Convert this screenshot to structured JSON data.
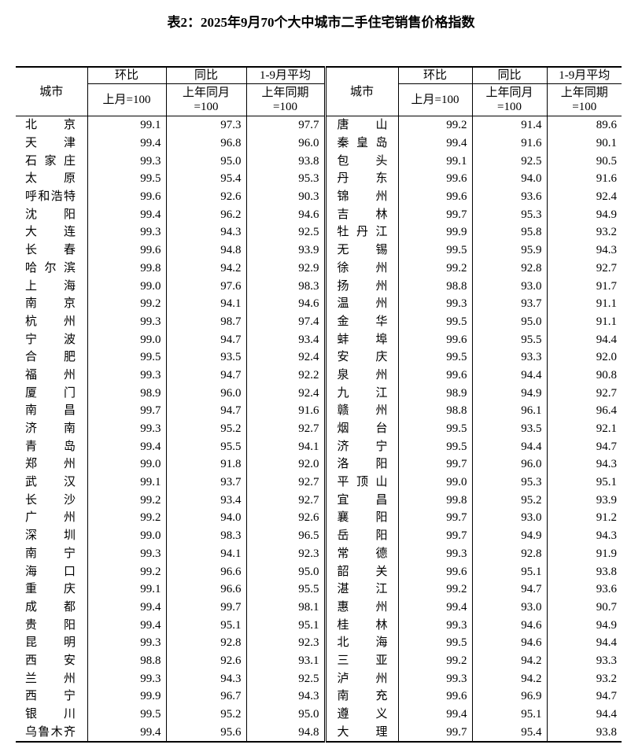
{
  "title": "表2：2025年9月70个大中城市二手住宅销售价格指数",
  "header": {
    "city": "城市",
    "mom": "环比",
    "yoy": "同比",
    "avg": "1-9月平均",
    "mom_base": "上月=100",
    "yoy_base_line1": "上年同月",
    "yoy_base_line2": "=100",
    "avg_base_line1": "上年同期",
    "avg_base_line2": "=100"
  },
  "left_rows": [
    {
      "city": "北京",
      "mom": "99.1",
      "yoy": "97.3",
      "avg": "97.7"
    },
    {
      "city": "天津",
      "mom": "99.4",
      "yoy": "96.8",
      "avg": "96.0"
    },
    {
      "city": "石家庄",
      "mom": "99.3",
      "yoy": "95.0",
      "avg": "93.8"
    },
    {
      "city": "太原",
      "mom": "99.5",
      "yoy": "95.4",
      "avg": "95.3"
    },
    {
      "city": "呼和浩特",
      "mom": "99.6",
      "yoy": "92.6",
      "avg": "90.3"
    },
    {
      "city": "沈阳",
      "mom": "99.4",
      "yoy": "96.2",
      "avg": "94.6"
    },
    {
      "city": "大连",
      "mom": "99.3",
      "yoy": "94.3",
      "avg": "92.5"
    },
    {
      "city": "长春",
      "mom": "99.6",
      "yoy": "94.8",
      "avg": "93.9"
    },
    {
      "city": "哈尔滨",
      "mom": "99.8",
      "yoy": "94.2",
      "avg": "92.9"
    },
    {
      "city": "上海",
      "mom": "99.0",
      "yoy": "97.6",
      "avg": "98.3"
    },
    {
      "city": "南京",
      "mom": "99.2",
      "yoy": "94.1",
      "avg": "94.6"
    },
    {
      "city": "杭州",
      "mom": "99.3",
      "yoy": "98.7",
      "avg": "97.4"
    },
    {
      "city": "宁波",
      "mom": "99.0",
      "yoy": "94.7",
      "avg": "93.4"
    },
    {
      "city": "合肥",
      "mom": "99.5",
      "yoy": "93.5",
      "avg": "92.4"
    },
    {
      "city": "福州",
      "mom": "99.3",
      "yoy": "94.7",
      "avg": "92.2"
    },
    {
      "city": "厦门",
      "mom": "98.9",
      "yoy": "96.0",
      "avg": "92.4"
    },
    {
      "city": "南昌",
      "mom": "99.7",
      "yoy": "94.7",
      "avg": "91.6"
    },
    {
      "city": "济南",
      "mom": "99.3",
      "yoy": "95.2",
      "avg": "92.7"
    },
    {
      "city": "青岛",
      "mom": "99.4",
      "yoy": "95.5",
      "avg": "94.1"
    },
    {
      "city": "郑州",
      "mom": "99.0",
      "yoy": "91.8",
      "avg": "92.0"
    },
    {
      "city": "武汉",
      "mom": "99.1",
      "yoy": "93.7",
      "avg": "92.7"
    },
    {
      "city": "长沙",
      "mom": "99.2",
      "yoy": "93.4",
      "avg": "92.7"
    },
    {
      "city": "广州",
      "mom": "99.2",
      "yoy": "94.0",
      "avg": "92.6"
    },
    {
      "city": "深圳",
      "mom": "99.0",
      "yoy": "98.3",
      "avg": "96.5"
    },
    {
      "city": "南宁",
      "mom": "99.3",
      "yoy": "94.1",
      "avg": "92.3"
    },
    {
      "city": "海口",
      "mom": "99.2",
      "yoy": "96.6",
      "avg": "95.0"
    },
    {
      "city": "重庆",
      "mom": "99.1",
      "yoy": "96.6",
      "avg": "95.5"
    },
    {
      "city": "成都",
      "mom": "99.4",
      "yoy": "99.7",
      "avg": "98.1"
    },
    {
      "city": "贵阳",
      "mom": "99.4",
      "yoy": "95.1",
      "avg": "95.1"
    },
    {
      "city": "昆明",
      "mom": "99.3",
      "yoy": "92.8",
      "avg": "92.3"
    },
    {
      "city": "西安",
      "mom": "98.8",
      "yoy": "92.6",
      "avg": "93.1"
    },
    {
      "city": "兰州",
      "mom": "99.3",
      "yoy": "94.3",
      "avg": "92.5"
    },
    {
      "city": "西宁",
      "mom": "99.9",
      "yoy": "96.7",
      "avg": "94.3"
    },
    {
      "city": "银川",
      "mom": "99.5",
      "yoy": "95.2",
      "avg": "95.0"
    },
    {
      "city": "乌鲁木齐",
      "mom": "99.4",
      "yoy": "95.6",
      "avg": "94.8"
    }
  ],
  "right_rows": [
    {
      "city": "唐山",
      "mom": "99.2",
      "yoy": "91.4",
      "avg": "89.6"
    },
    {
      "city": "秦皇岛",
      "mom": "99.4",
      "yoy": "91.6",
      "avg": "90.1"
    },
    {
      "city": "包头",
      "mom": "99.1",
      "yoy": "92.5",
      "avg": "90.5"
    },
    {
      "city": "丹东",
      "mom": "99.6",
      "yoy": "94.0",
      "avg": "91.6"
    },
    {
      "city": "锦州",
      "mom": "99.6",
      "yoy": "93.6",
      "avg": "92.4"
    },
    {
      "city": "吉林",
      "mom": "99.7",
      "yoy": "95.3",
      "avg": "94.9"
    },
    {
      "city": "牡丹江",
      "mom": "99.9",
      "yoy": "95.8",
      "avg": "93.2"
    },
    {
      "city": "无锡",
      "mom": "99.5",
      "yoy": "95.9",
      "avg": "94.3"
    },
    {
      "city": "徐州",
      "mom": "99.2",
      "yoy": "92.8",
      "avg": "92.7"
    },
    {
      "city": "扬州",
      "mom": "98.8",
      "yoy": "93.0",
      "avg": "91.7"
    },
    {
      "city": "温州",
      "mom": "99.3",
      "yoy": "93.7",
      "avg": "91.1"
    },
    {
      "city": "金华",
      "mom": "99.5",
      "yoy": "95.0",
      "avg": "91.1"
    },
    {
      "city": "蚌埠",
      "mom": "99.6",
      "yoy": "95.5",
      "avg": "94.4"
    },
    {
      "city": "安庆",
      "mom": "99.5",
      "yoy": "93.3",
      "avg": "92.0"
    },
    {
      "city": "泉州",
      "mom": "99.6",
      "yoy": "94.4",
      "avg": "90.8"
    },
    {
      "city": "九江",
      "mom": "98.9",
      "yoy": "94.9",
      "avg": "92.7"
    },
    {
      "city": "赣州",
      "mom": "98.8",
      "yoy": "96.1",
      "avg": "96.4"
    },
    {
      "city": "烟台",
      "mom": "99.5",
      "yoy": "93.5",
      "avg": "92.1"
    },
    {
      "city": "济宁",
      "mom": "99.5",
      "yoy": "94.4",
      "avg": "94.7"
    },
    {
      "city": "洛阳",
      "mom": "99.7",
      "yoy": "96.0",
      "avg": "94.3"
    },
    {
      "city": "平顶山",
      "mom": "99.0",
      "yoy": "95.3",
      "avg": "95.1"
    },
    {
      "city": "宜昌",
      "mom": "99.8",
      "yoy": "95.2",
      "avg": "93.9"
    },
    {
      "city": "襄阳",
      "mom": "99.7",
      "yoy": "93.0",
      "avg": "91.2"
    },
    {
      "city": "岳阳",
      "mom": "99.7",
      "yoy": "94.9",
      "avg": "94.3"
    },
    {
      "city": "常德",
      "mom": "99.3",
      "yoy": "92.8",
      "avg": "91.9"
    },
    {
      "city": "韶关",
      "mom": "99.6",
      "yoy": "95.1",
      "avg": "93.8"
    },
    {
      "city": "湛江",
      "mom": "99.2",
      "yoy": "94.7",
      "avg": "93.6"
    },
    {
      "city": "惠州",
      "mom": "99.4",
      "yoy": "93.0",
      "avg": "90.7"
    },
    {
      "city": "桂林",
      "mom": "99.3",
      "yoy": "94.6",
      "avg": "94.9"
    },
    {
      "city": "北海",
      "mom": "99.5",
      "yoy": "94.6",
      "avg": "94.4"
    },
    {
      "city": "三亚",
      "mom": "99.2",
      "yoy": "94.2",
      "avg": "93.3"
    },
    {
      "city": "泸州",
      "mom": "99.3",
      "yoy": "94.2",
      "avg": "93.2"
    },
    {
      "city": "南充",
      "mom": "99.6",
      "yoy": "96.9",
      "avg": "94.7"
    },
    {
      "city": "遵义",
      "mom": "99.4",
      "yoy": "95.1",
      "avg": "94.4"
    },
    {
      "city": "大理",
      "mom": "99.7",
      "yoy": "95.4",
      "avg": "93.8"
    }
  ]
}
